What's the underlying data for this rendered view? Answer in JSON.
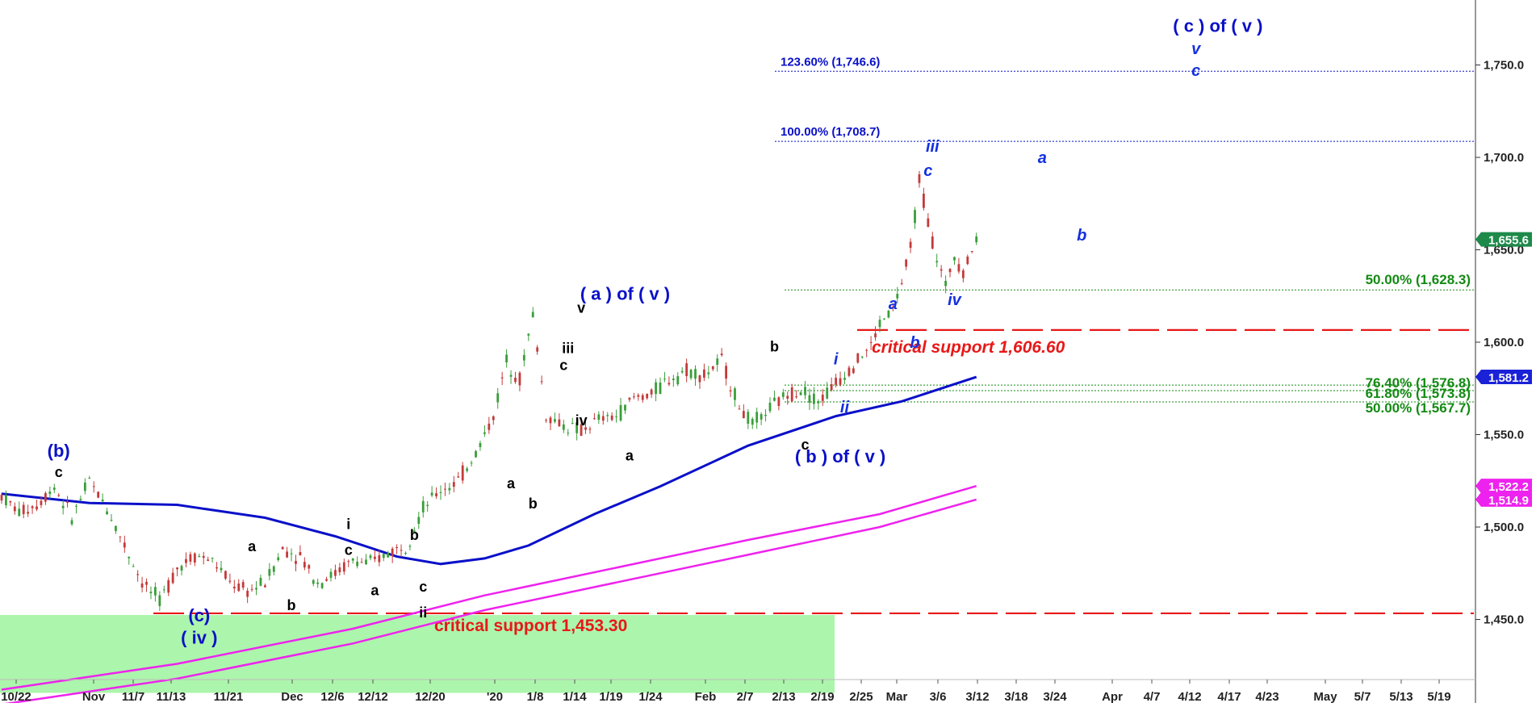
{
  "chart_data": {
    "type": "candlestick",
    "y_axis": {
      "ylim": [
        1412,
        1777
      ],
      "ticks": [
        "1,450.0",
        "1,500.0",
        "1,550.0",
        "1,600.0",
        "1,650.0",
        "1,700.0",
        "1,750.0"
      ],
      "tick_values": [
        1450,
        1500,
        1550,
        1600,
        1650,
        1700,
        1750
      ],
      "position": "right"
    },
    "x_axis": {
      "ticks": [
        "10/22",
        "Nov",
        "11/7",
        "11/13",
        "11/21",
        "Dec",
        "12/6",
        "12/12",
        "12/20",
        "'20",
        "1/8",
        "1/14",
        "1/19",
        "1/24",
        "Feb",
        "2/7",
        "2/13",
        "2/19",
        "2/25",
        "Mar",
        "3/6",
        "3/12",
        "3/18",
        "3/24",
        "Apr",
        "4/7",
        "4/12",
        "4/17",
        "4/23",
        "May",
        "5/7",
        "5/13",
        "5/19"
      ]
    },
    "price_series": {
      "name": "price",
      "points": [
        [
          0,
          1517
        ],
        [
          4,
          1508
        ],
        [
          8,
          1512
        ],
        [
          12,
          1522
        ],
        [
          16,
          1505
        ],
        [
          20,
          1525
        ],
        [
          24,
          1510
        ],
        [
          28,
          1490
        ],
        [
          32,
          1470
        ],
        [
          36,
          1460
        ],
        [
          40,
          1478
        ],
        [
          44,
          1485
        ],
        [
          48,
          1482
        ],
        [
          52,
          1470
        ],
        [
          56,
          1465
        ],
        [
          60,
          1470
        ],
        [
          64,
          1488
        ],
        [
          68,
          1484
        ],
        [
          72,
          1470
        ],
        [
          76,
          1475
        ],
        [
          80,
          1482
        ],
        [
          84,
          1480
        ],
        [
          88,
          1486
        ],
        [
          92,
          1490
        ],
        [
          96,
          1510
        ],
        [
          100,
          1520
        ],
        [
          104,
          1525
        ],
        [
          108,
          1540
        ],
        [
          112,
          1560
        ],
        [
          115,
          1590
        ],
        [
          118,
          1580
        ],
        [
          121,
          1615
        ],
        [
          124,
          1560
        ],
        [
          128,
          1555
        ],
        [
          132,
          1552
        ],
        [
          136,
          1558
        ],
        [
          140,
          1560
        ],
        [
          144,
          1570
        ],
        [
          148,
          1572
        ],
        [
          152,
          1580
        ],
        [
          156,
          1585
        ],
        [
          160,
          1582
        ],
        [
          164,
          1590
        ],
        [
          168,
          1565
        ],
        [
          171,
          1555
        ],
        [
          174,
          1562
        ],
        [
          178,
          1570
        ],
        [
          182,
          1575
        ],
        [
          186,
          1568
        ],
        [
          190,
          1578
        ],
        [
          194,
          1588
        ],
        [
          198,
          1598
        ],
        [
          200,
          1610
        ],
        [
          203,
          1618
        ],
        [
          205,
          1632
        ],
        [
          207,
          1650
        ],
        [
          209,
          1688
        ],
        [
          211,
          1665
        ],
        [
          213,
          1645
        ],
        [
          215,
          1630
        ],
        [
          217,
          1648
        ],
        [
          219,
          1638
        ],
        [
          221,
          1650
        ],
        [
          222,
          1655.6
        ]
      ]
    },
    "moving_averages": [
      {
        "points": [
          [
            0,
            1518
          ],
          [
            20,
            1513
          ],
          [
            40,
            1512
          ],
          [
            60,
            1505
          ],
          [
            76,
            1495
          ],
          [
            90,
            1484
          ],
          [
            100,
            1480
          ],
          [
            110,
            1483
          ],
          [
            120,
            1490
          ],
          [
            135,
            1507
          ],
          [
            150,
            1522
          ],
          [
            170,
            1544
          ],
          [
            190,
            1560
          ],
          [
            205,
            1568
          ],
          [
            222,
            1581.2
          ]
        ],
        "last_label": "1,581.2",
        "color": "#0a10c8"
      },
      {
        "points": [
          [
            0,
            1412
          ],
          [
            40,
            1426
          ],
          [
            80,
            1445
          ],
          [
            110,
            1463
          ],
          [
            140,
            1478
          ],
          [
            170,
            1493
          ],
          [
            200,
            1507
          ],
          [
            222,
            1522.2
          ]
        ],
        "last_label": "1,522.2",
        "color": "#ee22ee"
      },
      {
        "points": [
          [
            0,
            1404
          ],
          [
            40,
            1418
          ],
          [
            80,
            1437
          ],
          [
            110,
            1455
          ],
          [
            140,
            1470
          ],
          [
            170,
            1485
          ],
          [
            200,
            1500
          ],
          [
            222,
            1514.9
          ]
        ],
        "last_label": "1,514.9",
        "color": "#ee22ee"
      }
    ],
    "last_price_label": "1,655.6",
    "fib_levels": [
      {
        "label": "123.60% (1,746.6)",
        "value": 1746.6,
        "color": "#0a10c8"
      },
      {
        "label": "100.00% (1,708.7)",
        "value": 1708.7,
        "color": "#0a10c8"
      },
      {
        "label": "50.00% (1,628.3)",
        "value": 1628.3,
        "color": "#138a13"
      },
      {
        "label": "76.40% (1,576.8)",
        "value": 1576.8,
        "color": "#138a13"
      },
      {
        "label": "61.80% (1,573.8)",
        "value": 1573.8,
        "color": "#138a13"
      },
      {
        "label": "50.00% (1,567.7)",
        "value": 1567.7,
        "color": "#138a13"
      }
    ],
    "support_lines": [
      {
        "label": "critical support 1,606.60",
        "value": 1606.6,
        "color": "#e81818"
      },
      {
        "label": "critical support 1,453.30",
        "value": 1453.3,
        "color": "#e81818"
      }
    ],
    "wave_labels": [
      {
        "text": "(b)",
        "bar": 13,
        "value": 1538,
        "style": "blue-big"
      },
      {
        "text": "c",
        "bar": 13,
        "value": 1527,
        "style": "black"
      },
      {
        "text": "(c)",
        "bar": 45,
        "value": 1449,
        "style": "blue-big"
      },
      {
        "text": "( iv )",
        "bar": 45,
        "value": 1437,
        "style": "blue-big"
      },
      {
        "text": "a",
        "bar": 57,
        "value": 1487,
        "style": "black"
      },
      {
        "text": "b",
        "bar": 66,
        "value": 1455,
        "style": "black"
      },
      {
        "text": "i",
        "bar": 79,
        "value": 1499,
        "style": "black"
      },
      {
        "text": "c",
        "bar": 79,
        "value": 1485,
        "style": "black"
      },
      {
        "text": "a",
        "bar": 85,
        "value": 1463,
        "style": "black"
      },
      {
        "text": "b",
        "bar": 94,
        "value": 1493,
        "style": "black"
      },
      {
        "text": "c",
        "bar": 96,
        "value": 1465,
        "style": "black"
      },
      {
        "text": "ii",
        "bar": 96,
        "value": 1451,
        "style": "black"
      },
      {
        "text": "a",
        "bar": 116,
        "value": 1521,
        "style": "black"
      },
      {
        "text": "b",
        "bar": 121,
        "value": 1510,
        "style": "black"
      },
      {
        "text": "( a ) of ( v )",
        "bar": 142,
        "value": 1623,
        "style": "blue-big"
      },
      {
        "text": "v",
        "bar": 132,
        "value": 1616,
        "style": "black"
      },
      {
        "text": "iii",
        "bar": 129,
        "value": 1594,
        "style": "black"
      },
      {
        "text": "c",
        "bar": 128,
        "value": 1585,
        "style": "black"
      },
      {
        "text": "iv",
        "bar": 132,
        "value": 1555,
        "style": "black"
      },
      {
        "text": "a",
        "bar": 143,
        "value": 1536,
        "style": "black"
      },
      {
        "text": "b",
        "bar": 176,
        "value": 1595,
        "style": "black"
      },
      {
        "text": "c",
        "bar": 183,
        "value": 1542,
        "style": "black"
      },
      {
        "text": "( b ) of ( v )",
        "bar": 191,
        "value": 1535,
        "style": "blue-big"
      },
      {
        "text": "i",
        "bar": 190,
        "value": 1588,
        "style": "blue-it"
      },
      {
        "text": "ii",
        "bar": 192,
        "value": 1562,
        "style": "blue-it"
      },
      {
        "text": "a",
        "bar": 203,
        "value": 1618,
        "style": "blue-it"
      },
      {
        "text": "b",
        "bar": 208,
        "value": 1597,
        "style": "blue-it"
      },
      {
        "text": "iii",
        "bar": 212,
        "value": 1703,
        "style": "blue-it"
      },
      {
        "text": "c",
        "bar": 211,
        "value": 1690,
        "style": "blue-it"
      },
      {
        "text": "iv",
        "bar": 217,
        "value": 1620,
        "style": "blue-it"
      },
      {
        "text": "a",
        "bar": 237,
        "value": 1697,
        "style": "blue-it"
      },
      {
        "text": "b",
        "bar": 246,
        "value": 1655,
        "style": "blue-it"
      },
      {
        "text": "( c ) of ( v )",
        "bar": 277,
        "value": 1768,
        "style": "blue-big"
      },
      {
        "text": "v",
        "bar": 272,
        "value": 1756,
        "style": "blue-it"
      },
      {
        "text": "c",
        "bar": 272,
        "value": 1744,
        "style": "blue-it"
      }
    ],
    "projected_region_color": "#acf5ac"
  }
}
